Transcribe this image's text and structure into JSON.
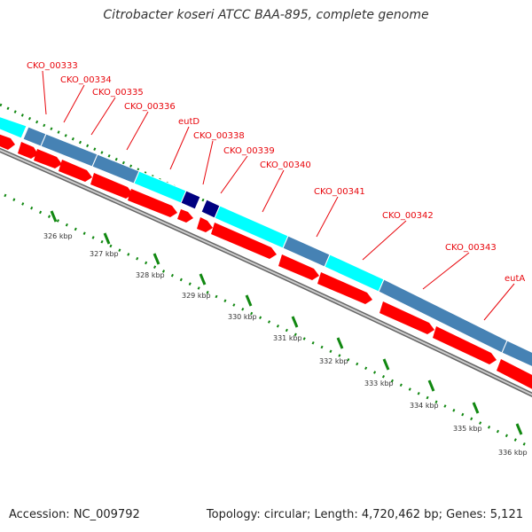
{
  "title": "Citrobacter koseri ATCC BAA-895, complete genome",
  "footer": {
    "accession": "Accession: NC_009792",
    "summary": "Topology: circular; Length: 4,720,462 bp; Genes: 5,121"
  },
  "colors": {
    "label_red": "#e8060c",
    "cds_red": "#ff0000",
    "track_light_blue": "#00ffff",
    "track_steel_blue": "#4682b4",
    "track_navy": "#000080",
    "tick_green": "#118811",
    "backbone_gray": "#8c8c8c",
    "text_gray": "#333333"
  },
  "scale": {
    "unit": "kbp",
    "ticks": [
      "326 kbp",
      "327 kbp",
      "328 kbp",
      "329 kbp",
      "330 kbp",
      "331 kbp",
      "332 kbp",
      "333 kbp",
      "334 kbp",
      "335 kbp",
      "336 kbp"
    ]
  },
  "gene_labels": [
    "CKO_00333",
    "CKO_00334",
    "CKO_00335",
    "CKO_00336",
    "eutD",
    "CKO_00338",
    "CKO_00339",
    "CKO_00340",
    "CKO_00341",
    "CKO_00342",
    "CKO_00343",
    "eutA"
  ]
}
